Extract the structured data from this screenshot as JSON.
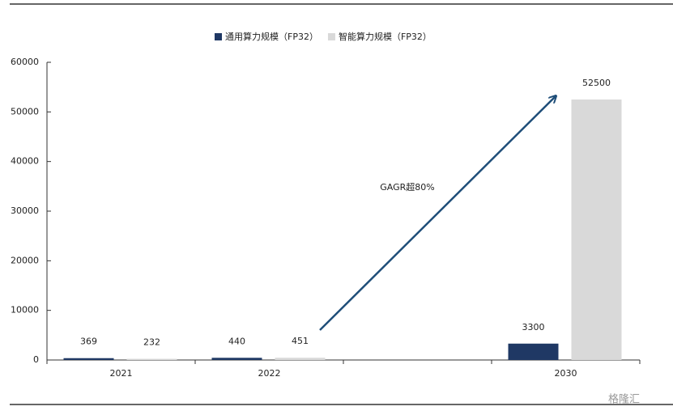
{
  "chart_data": {
    "type": "bar",
    "categories": [
      "2021",
      "2022",
      null,
      "2030"
    ],
    "series": [
      {
        "name": "通用算力规模（FP32）",
        "color": "#1f3864",
        "values": [
          369,
          440,
          null,
          3300
        ]
      },
      {
        "name": "智能算力规模（FP32）",
        "color": "#d9d9d9",
        "values": [
          232,
          451,
          null,
          52500
        ]
      }
    ],
    "ylim": [
      0,
      60000
    ],
    "yticks": [
      0,
      10000,
      20000,
      30000,
      40000,
      50000,
      60000
    ],
    "annotation": "GAGR超80%",
    "arrow_color": "#1f4e79",
    "legend": "top",
    "watermark": "格隆汇"
  }
}
